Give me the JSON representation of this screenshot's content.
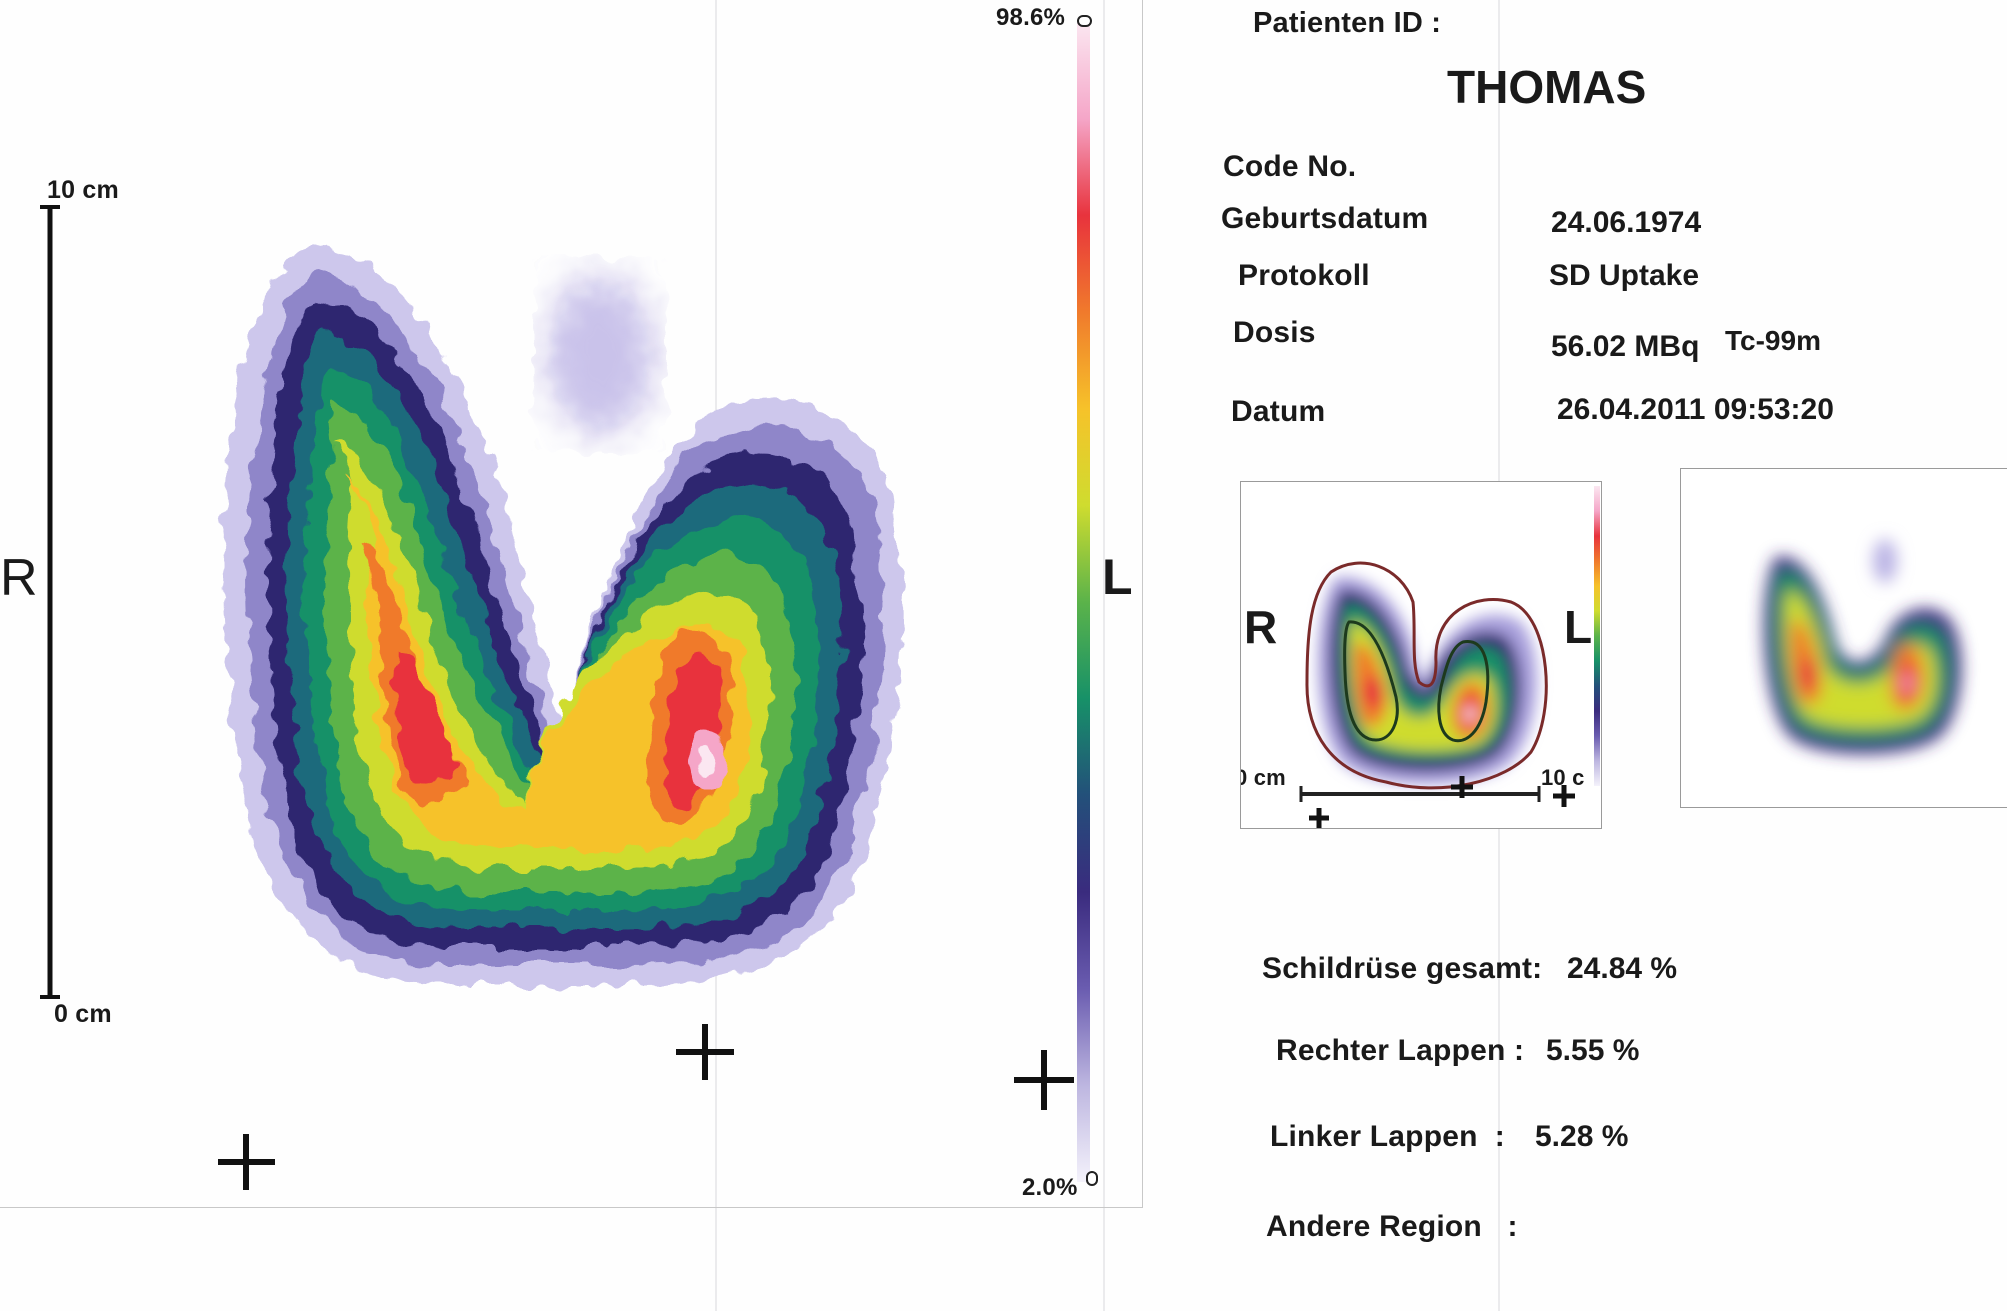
{
  "scan": {
    "scale_bar": {
      "top_label": "10 cm",
      "bottom_label": "0 cm"
    },
    "side_labels": {
      "right": "R",
      "left": "L"
    },
    "color_scale": {
      "max_label": "98.6%",
      "min_label": "2.0%",
      "colors": [
        "#fbe7f1",
        "#f5a6c8",
        "#e8333d",
        "#f07a2c",
        "#f6c22a",
        "#cfdc2f",
        "#5bb34a",
        "#179168",
        "#23507a",
        "#3a2b7e",
        "#6a5cb0",
        "#bdb6e0",
        "#f4f2fb"
      ]
    }
  },
  "info": {
    "patient_id_label": "Patienten ID :",
    "patient_name": "THOMAS",
    "code_label": "Code No.",
    "birth_label": "Geburtsdatum",
    "birth_value": "24.06.1974",
    "protocol_label": "Protokoll",
    "protocol_value": "SD Uptake",
    "dose_label": "Dosis",
    "dose_value": "56.02 MBq",
    "dose_isotope": "Tc-99m",
    "date_label": "Datum",
    "date_value": "26.04.2011 09:53:20"
  },
  "roi_thumbnail": {
    "right_label": "R",
    "left_label": "L",
    "scale_start": "0 cm",
    "scale_end": "10 c"
  },
  "results": {
    "total_label": "Schildrüse gesamt:",
    "total_value": "24.84 %",
    "right_lobe_label": "Rechter Lappen :",
    "right_lobe_value": "5.55 %",
    "left_lobe_label": "Linker Lappen  :",
    "left_lobe_value": "5.28 %",
    "other_label": "Andere Region   :",
    "other_value": ""
  }
}
